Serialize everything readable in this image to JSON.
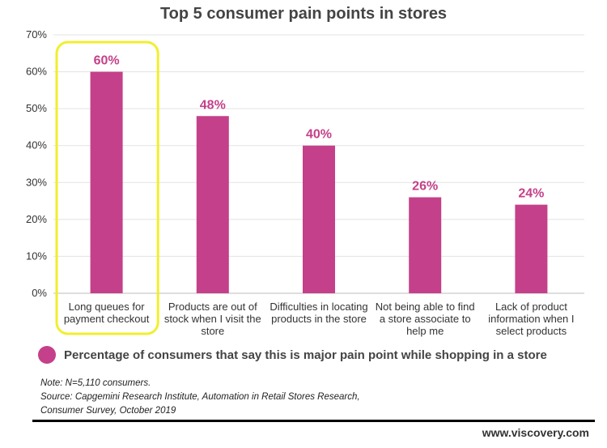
{
  "chart_data": {
    "type": "bar",
    "title": "Top 5 consumer pain points in stores",
    "categories": [
      [
        "Long queues for",
        "payment checkout"
      ],
      [
        "Products are out of",
        "stock when I visit the",
        "store"
      ],
      [
        "Difficulties in locating",
        "products in the store"
      ],
      [
        "Not being able to find",
        "a store associate to",
        "help me"
      ],
      [
        "Lack of product",
        "information when I",
        "select products"
      ]
    ],
    "values": [
      60,
      48,
      40,
      26,
      24
    ],
    "value_labels": [
      "60%",
      "48%",
      "40%",
      "26%",
      "24%"
    ],
    "ylim": [
      0,
      70
    ],
    "yticks": [
      0,
      10,
      20,
      30,
      40,
      50,
      60,
      70
    ],
    "ytick_labels": [
      "0%",
      "10%",
      "20%",
      "30%",
      "40%",
      "50%",
      "60%",
      "70%"
    ],
    "grid": true,
    "highlighted_category_index": 0,
    "series": [
      {
        "name": "Percentage of consumers that say this is major pain point while shopping in a store",
        "values": [
          60,
          48,
          40,
          26,
          24
        ]
      }
    ],
    "legend_position": "bottom-left"
  },
  "colors": {
    "bar": "#C4408A",
    "value_label": "#C4408A",
    "highlight_border": "#F2EE2F",
    "grid": "#E3E3E3"
  },
  "legend": {
    "label": "Percentage of consumers that say this is major pain point while shopping in a store"
  },
  "notes": {
    "line1": "Note: N=5,110 consumers.",
    "line2": "Source: Capgemini Research Institute, Automation in Retail Stores Research,",
    "line3": "Consumer Survey, October 2019"
  },
  "footer": {
    "website": "www.viscovery.com"
  }
}
